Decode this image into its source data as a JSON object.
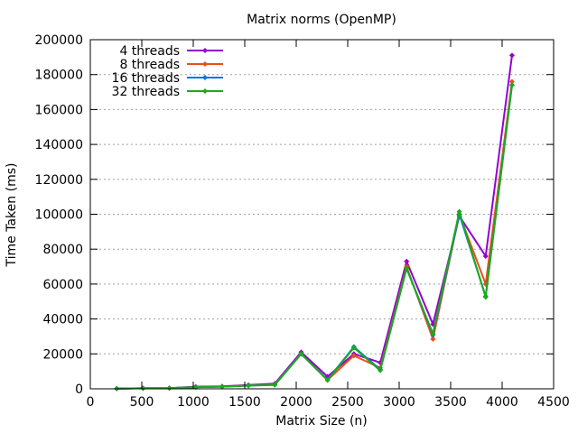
{
  "chart_data": {
    "type": "line",
    "title": "Matrix norms (OpenMP)",
    "xlabel": "Matrix Size (n)",
    "ylabel": "Time Taken (ms)",
    "xlim": [
      0,
      4500
    ],
    "ylim": [
      0,
      200000
    ],
    "xticks": [
      0,
      500,
      1000,
      1500,
      2000,
      2500,
      3000,
      3500,
      4000,
      4500
    ],
    "yticks": [
      0,
      20000,
      40000,
      60000,
      80000,
      100000,
      120000,
      140000,
      160000,
      180000,
      200000
    ],
    "xtick_labels": [
      "0",
      "500",
      "1000",
      "1500",
      "2000",
      "2500",
      "3000",
      "3500",
      "4000",
      "4500"
    ],
    "ytick_labels": [
      "0",
      "20000",
      "40000",
      "60000",
      "80000",
      "100000",
      "120000",
      "140000",
      "160000",
      "180000",
      "200000"
    ],
    "grid": "horizontal-dotted",
    "legend_position": "top-left",
    "x": [
      256,
      512,
      768,
      1024,
      1280,
      1536,
      1792,
      2048,
      2304,
      2560,
      2816,
      3072,
      3328,
      3584,
      3840,
      4096
    ],
    "series": [
      {
        "name": "4 threads",
        "color": "#9400d3",
        "values": [
          100,
          300,
          400,
          1200,
          1400,
          2200,
          3000,
          21000,
          7000,
          20000,
          15000,
          73000,
          37000,
          99000,
          76000,
          191000
        ]
      },
      {
        "name": "8 threads",
        "color": "#e8501a",
        "values": [
          100,
          300,
          400,
          1000,
          1300,
          2000,
          2600,
          20000,
          5000,
          19000,
          12000,
          70000,
          28500,
          100000,
          60000,
          176000
        ]
      },
      {
        "name": "16 threads",
        "color": "#0072e8",
        "values": [
          100,
          300,
          400,
          1000,
          1200,
          1900,
          2400,
          20000,
          5200,
          24000,
          11000,
          69000,
          31000,
          100000,
          53000,
          174000
        ]
      },
      {
        "name": "32 threads",
        "color": "#1aab1a",
        "values": [
          100,
          300,
          400,
          1000,
          1200,
          1800,
          2200,
          20000,
          5000,
          23500,
          10500,
          69000,
          31500,
          101500,
          52500,
          174000
        ]
      }
    ]
  }
}
